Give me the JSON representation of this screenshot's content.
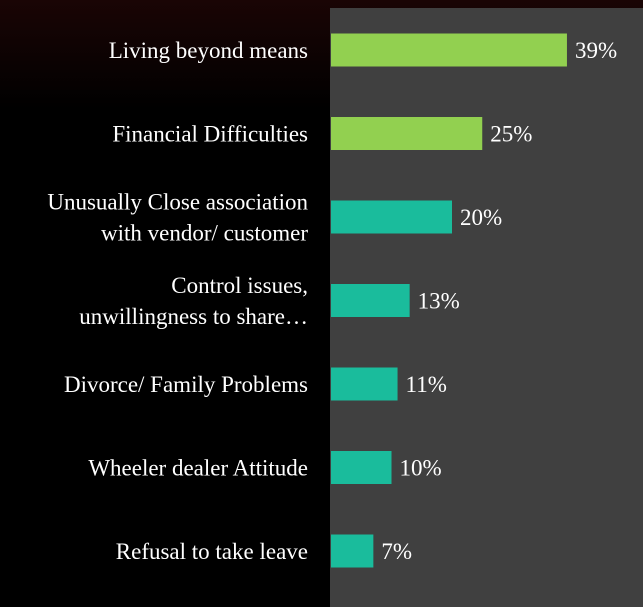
{
  "colors": {
    "background": "#000000",
    "plot_background": "#404040",
    "bar_green": "#92d050",
    "bar_teal": "#1abc9c",
    "text": "#ffffff"
  },
  "chart_data": {
    "type": "bar",
    "orientation": "horizontal",
    "categories": [
      "Living beyond means",
      "Financial Difficulties",
      "Unusually Close association with vendor/ customer",
      "Control issues, unwillingness to share…",
      "Divorce/ Family Problems",
      "Wheeler dealer Attitude",
      "Refusal to take leave"
    ],
    "category_lines": [
      [
        "Living beyond means"
      ],
      [
        "Financial Difficulties"
      ],
      [
        "Unusually Close association",
        "with vendor/ customer"
      ],
      [
        "Control issues,",
        "unwillingness to share…"
      ],
      [
        "Divorce/ Family Problems"
      ],
      [
        "Wheeler dealer Attitude"
      ],
      [
        "Refusal to take leave"
      ]
    ],
    "values": [
      39,
      25,
      20,
      13,
      11,
      10,
      7
    ],
    "value_labels": [
      "39%",
      "25%",
      "20%",
      "13%",
      "11%",
      "10%",
      "7%"
    ],
    "bar_colors": [
      "#92d050",
      "#92d050",
      "#1abc9c",
      "#1abc9c",
      "#1abc9c",
      "#1abc9c",
      "#1abc9c"
    ],
    "xlim": [
      0,
      100
    ],
    "grid": false,
    "legend": "none"
  }
}
